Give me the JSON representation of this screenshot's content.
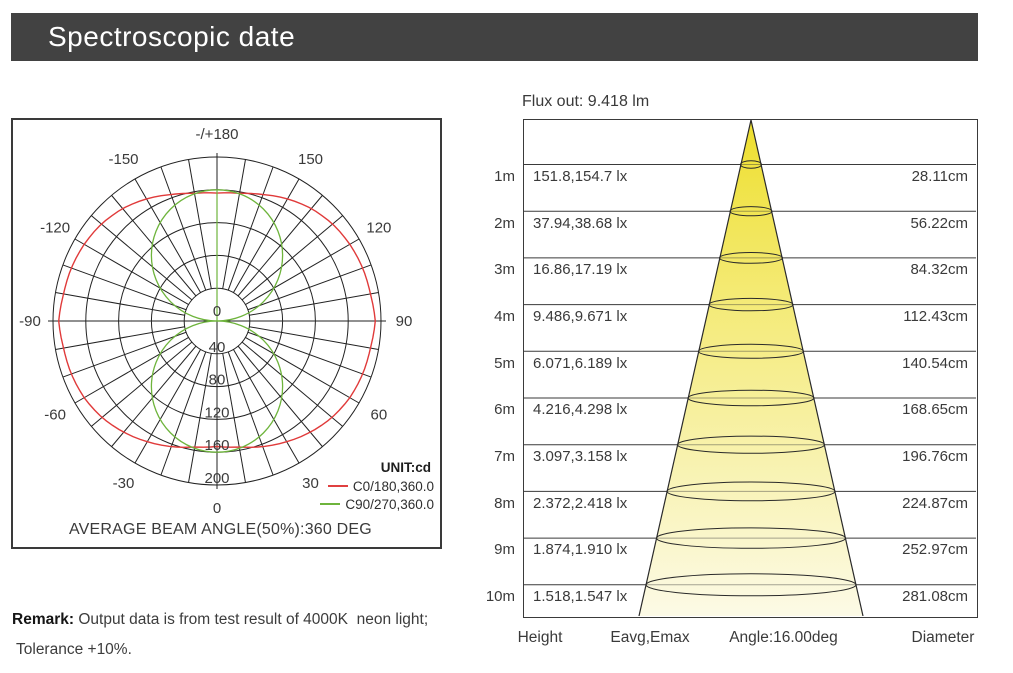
{
  "header": {
    "title": "Spectroscopic date"
  },
  "chart_data": [
    {
      "type": "polar",
      "title": "AVERAGE BEAM ANGLE(50%):360 DEG",
      "unit_label": "UNIT:cd",
      "unit": "cd",
      "radial_ticks": [
        0,
        40,
        80,
        120,
        160,
        200
      ],
      "radial_max": 200,
      "angle_grid_step_deg": 10,
      "angle_label_step_deg": 30,
      "angle_labels": [
        {
          "angle": 0,
          "label": "0"
        },
        {
          "angle": 30,
          "label": "30"
        },
        {
          "angle": 60,
          "label": "60"
        },
        {
          "angle": 90,
          "label": "90"
        },
        {
          "angle": 120,
          "label": "120"
        },
        {
          "angle": 150,
          "label": "150"
        },
        {
          "angle": 180,
          "label": "-/+180"
        },
        {
          "angle": -30,
          "label": "-30"
        },
        {
          "angle": -60,
          "label": "-60"
        },
        {
          "angle": -90,
          "label": "-90"
        },
        {
          "angle": -120,
          "label": "-120"
        },
        {
          "angle": -150,
          "label": "-150"
        }
      ],
      "series": [
        {
          "name": "C0/180,360.0",
          "color": "#e03a3a",
          "symmetric": true,
          "profile_deg_cd": [
            [
              0,
              153
            ],
            [
              10,
              156
            ],
            [
              20,
              163
            ],
            [
              30,
              170
            ],
            [
              40,
              177
            ],
            [
              50,
              183
            ],
            [
              60,
              187
            ],
            [
              70,
              189
            ],
            [
              80,
              190
            ],
            [
              90,
              193
            ],
            [
              100,
              190
            ],
            [
              110,
              189
            ],
            [
              120,
              187
            ],
            [
              130,
              184
            ],
            [
              140,
              179
            ],
            [
              150,
              172
            ],
            [
              160,
              164
            ],
            [
              170,
              158
            ],
            [
              180,
              156
            ]
          ]
        },
        {
          "name": "C90/270,360.0",
          "color": "#6eb43c",
          "model": "cosine_lobes",
          "peak_cd": 160
        }
      ]
    },
    {
      "type": "cone-diagram",
      "title": "Flux out: 9.418 lm",
      "beam_angle_label": "Angle:16.00deg",
      "beam_angle_deg": 16.0,
      "heights_m": [
        1,
        2,
        3,
        4,
        5,
        6,
        7,
        8,
        9,
        10
      ],
      "eavg_lx": [
        151.8,
        37.94,
        16.86,
        9.486,
        6.071,
        4.216,
        3.097,
        2.372,
        1.874,
        1.518
      ],
      "emax_lx": [
        154.7,
        38.68,
        17.19,
        9.671,
        6.189,
        4.298,
        3.158,
        2.418,
        1.91,
        1.547
      ],
      "diameter_cm": [
        28.11,
        56.22,
        84.32,
        112.43,
        140.54,
        168.65,
        196.76,
        224.87,
        252.97,
        281.08
      ],
      "cone_colors": {
        "top": "#eedf2e",
        "mid": "#f4ea74",
        "bottom": "#fcfae6"
      }
    }
  ],
  "cone": {
    "rows": [
      {
        "height": "1m",
        "eavg_emax": "151.8,154.7 lx",
        "diameter": "28.11cm"
      },
      {
        "height": "2m",
        "eavg_emax": "37.94,38.68 lx",
        "diameter": "56.22cm"
      },
      {
        "height": "3m",
        "eavg_emax": "16.86,17.19 lx",
        "diameter": "84.32cm"
      },
      {
        "height": "4m",
        "eavg_emax": "9.486,9.671 lx",
        "diameter": "112.43cm"
      },
      {
        "height": "5m",
        "eavg_emax": "6.071,6.189 lx",
        "diameter": "140.54cm"
      },
      {
        "height": "6m",
        "eavg_emax": "4.216,4.298 lx",
        "diameter": "168.65cm"
      },
      {
        "height": "7m",
        "eavg_emax": "3.097,3.158 lx",
        "diameter": "196.76cm"
      },
      {
        "height": "8m",
        "eavg_emax": "2.372,2.418 lx",
        "diameter": "224.87cm"
      },
      {
        "height": "9m",
        "eavg_emax": "1.874,1.910 lx",
        "diameter": "252.97cm"
      },
      {
        "height": "10m",
        "eavg_emax": "1.518,1.547 lx",
        "diameter": "281.08cm"
      }
    ],
    "footer": {
      "height": "Height",
      "e": "Eavg,Emax",
      "diameter": "Diameter"
    }
  },
  "remark": {
    "label": "Remark:",
    "line1": " Output data is from test result of 4000K  neon light;",
    "line2": "Tolerance +10%."
  }
}
